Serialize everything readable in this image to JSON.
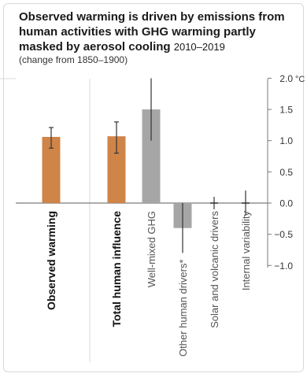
{
  "header": {
    "title": "Observed warming is driven by emissions from human activities with GHG warming partly masked by aerosol cooling",
    "period": "2010–2019",
    "subtitle": "(change from 1850–1900)"
  },
  "chart_data": {
    "type": "bar",
    "orientation": "vertical",
    "categories": [
      "Observed warming",
      "Total human influence",
      "Well-mixed GHG",
      "Other human drivers*",
      "Solar and volcanic drivers",
      "Internal variability"
    ],
    "category_bold": [
      true,
      true,
      false,
      false,
      false,
      false
    ],
    "values": [
      1.06,
      1.07,
      1.5,
      -0.4,
      0.0,
      0.0
    ],
    "error_low": [
      0.88,
      0.8,
      1.0,
      -0.8,
      -0.1,
      -0.2
    ],
    "error_high": [
      1.21,
      1.3,
      2.0,
      0.0,
      0.1,
      0.2
    ],
    "bar_colors": [
      "#cf8448",
      "#cf8448",
      "#a6a6a6",
      "#a6a6a6",
      "#a6a6a6",
      "#a6a6a6"
    ],
    "ylim": [
      -1.0,
      2.0
    ],
    "yticks": [
      -1.0,
      -0.5,
      0.0,
      0.5,
      1.0,
      1.5,
      2.0
    ],
    "yticks_labels": [
      "−1.0",
      "−0.5",
      "0.0",
      "0.5",
      "1.0",
      "1.5",
      "2.0"
    ],
    "yunit": "°C",
    "grid": false,
    "colors": {
      "observed": "#cf8448",
      "human": "#cf8448",
      "drivers": "#a6a6a6",
      "axis": "#7a7a7a",
      "panel_bg": "#ffffff",
      "separator": "#d9d9d9"
    }
  }
}
